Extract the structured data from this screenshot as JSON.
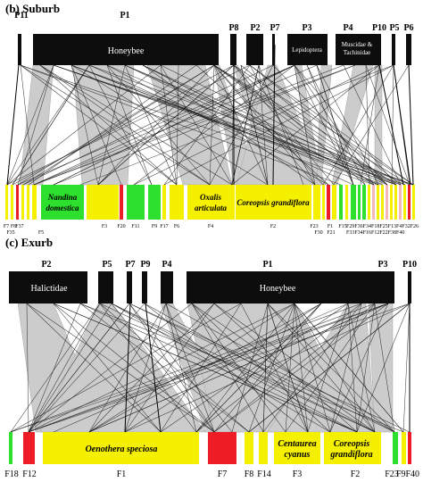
{
  "panels": [
    {
      "title": "(b) Suburb",
      "pollinator_labels": {
        "P11": "P11",
        "P1": "P1",
        "P8": "P8",
        "P2": "P2",
        "P7": "P7",
        "P3": "P3",
        "P4": "P4",
        "P10": "P10",
        "P5": "P5",
        "P6": "P6"
      },
      "pollinator_inner": {
        "P1": [
          "Honeybee"
        ],
        "P3": [
          "Lepidoptera"
        ],
        "P4": [
          "Muscidae &",
          "Tachinidae"
        ]
      },
      "flower_inner": {
        "F5": [
          "Nandina",
          "domestica"
        ],
        "F4": [
          "Oxalis",
          "articulata"
        ],
        "F2": [
          "Coreopsis  grandiflora"
        ]
      },
      "flower_labels_row1": [
        "F7",
        "F8",
        "F37",
        "F3",
        "F20",
        "F11",
        "F9",
        "F17",
        "F6",
        "F4",
        "F2",
        "F23",
        "F1",
        "F15",
        "F29F36F34F18F25F13F4F32F26"
      ],
      "flower_labels_row2": [
        "F35",
        "F5",
        "F30",
        "F21",
        "F33F34F16F12F22F38F40"
      ]
    },
    {
      "title": "(c) Exurb",
      "pollinator_labels": {
        "P2": "P2",
        "P5": "P5",
        "P7": "P7",
        "P9": "P9",
        "P4": "P4",
        "P1": "P1",
        "P3": "P3",
        "P10": "P10"
      },
      "pollinator_inner": {
        "P2": [
          "Halictidae"
        ],
        "P1": [
          "Honeybee"
        ]
      },
      "flower_inner": {
        "F1": [
          "Oenothera speciosa"
        ],
        "F3": [
          "Centaurea",
          "cyanus"
        ],
        "F2": [
          "Coreopsis",
          "grandiflora"
        ]
      },
      "flower_labels": [
        "F18",
        "F12",
        "F1",
        "F7",
        "F8",
        "F14",
        "F3",
        "F2",
        "F23",
        "F9F40"
      ]
    }
  ],
  "colors": {
    "pollinator": "#0d0d0d",
    "interaction": "#cccccc",
    "link_line": "#111111",
    "yellow": "#f5ef00",
    "green": "#2ee02e",
    "red": "#ee1c24",
    "pink": "#f4b8b8"
  }
}
